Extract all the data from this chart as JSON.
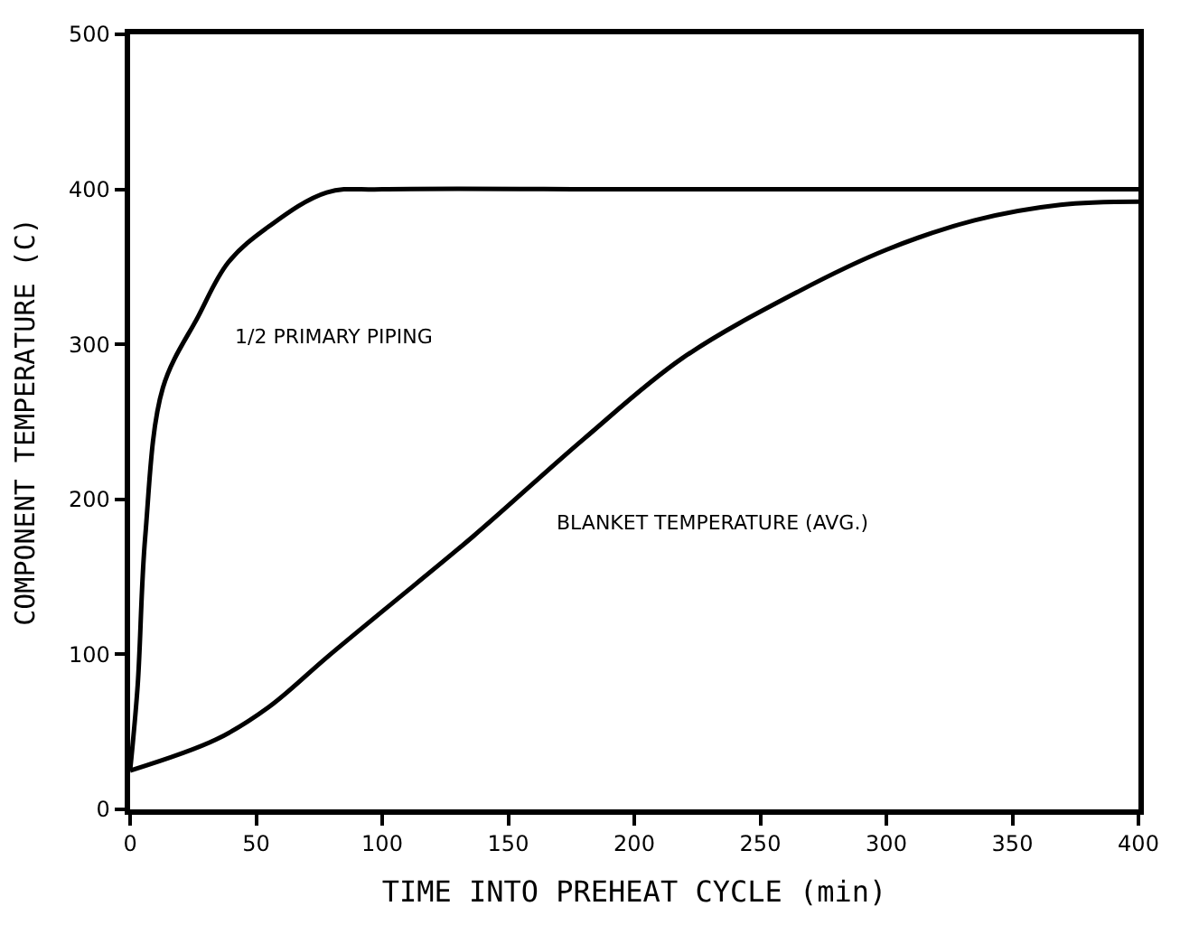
{
  "chart_data": {
    "type": "line",
    "xlabel": "TIME INTO PREHEAT CYCLE (min)",
    "ylabel": "COMPONENT TEMPERATURE (C)",
    "xlim": [
      0,
      400
    ],
    "ylim": [
      0,
      500
    ],
    "xticks": [
      0,
      50,
      100,
      150,
      200,
      250,
      300,
      350,
      400
    ],
    "yticks": [
      0,
      100,
      200,
      300,
      400,
      500
    ],
    "legend": false,
    "series": [
      {
        "name": "1/2 PRIMARY PIPING",
        "color": "#000000",
        "x": [
          0,
          3,
          6,
          13,
          27,
          39,
          55,
          78,
          100,
          200,
          300,
          400
        ],
        "values": [
          25,
          80,
          176,
          272,
          318,
          353,
          376,
          398,
          400,
          400,
          400,
          400
        ]
      },
      {
        "name": "BLANKET TEMPERATURE (AVG.)",
        "color": "#000000",
        "x": [
          0,
          34,
          55,
          78,
          101,
          136,
          180,
          219,
          265,
          300,
          335,
          369,
          400
        ],
        "values": [
          25,
          45,
          66,
          98,
          129,
          176,
          239,
          291,
          334,
          361,
          380,
          390,
          392
        ]
      }
    ]
  }
}
